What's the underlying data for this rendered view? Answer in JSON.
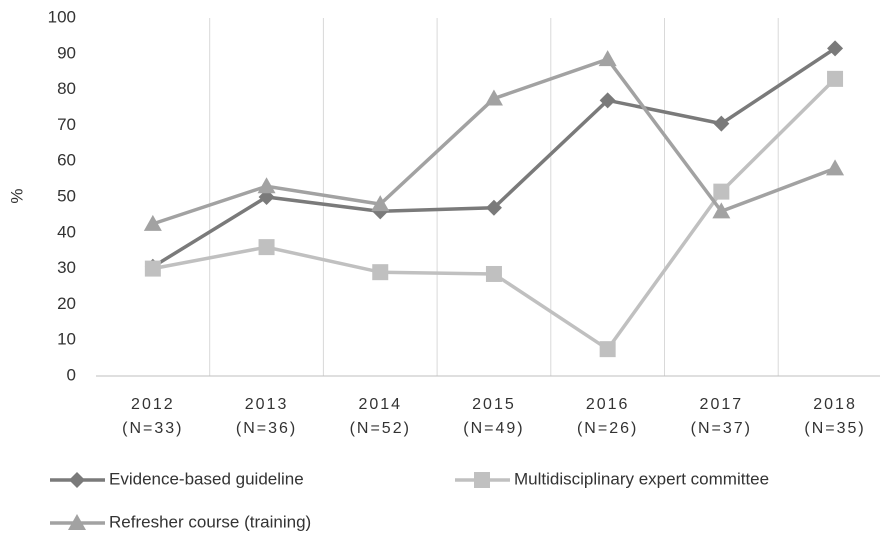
{
  "chart_data": {
    "type": "line",
    "ylabel": "%",
    "categories": [
      "2012 (N=33)",
      "2013 (N=36)",
      "2014 (N=52)",
      "2015 (N=49)",
      "2016 (N=26)",
      "2017 (N=37)",
      "2018 (N=35)"
    ],
    "series": [
      {
        "name": "Evidence-based guideline",
        "color": "#7a7a7a",
        "marker": "diamond",
        "values": [
          30.5,
          50,
          46,
          47,
          77,
          70.5,
          91.5
        ]
      },
      {
        "name": "Multidisciplinary expert committee",
        "color": "#c0c0c0",
        "marker": "square",
        "values": [
          30,
          36,
          29,
          28.5,
          7.5,
          51.5,
          83
        ]
      },
      {
        "name": "Refresher course (training)",
        "color": "#a2a2a2",
        "marker": "triangle",
        "values": [
          42.5,
          53,
          48,
          77.5,
          88.5,
          46,
          58
        ]
      }
    ],
    "ylim": [
      0,
      100
    ],
    "yticks": [
      0,
      10,
      20,
      30,
      40,
      50,
      60,
      70,
      80,
      90,
      100
    ],
    "legend": "bottom"
  }
}
